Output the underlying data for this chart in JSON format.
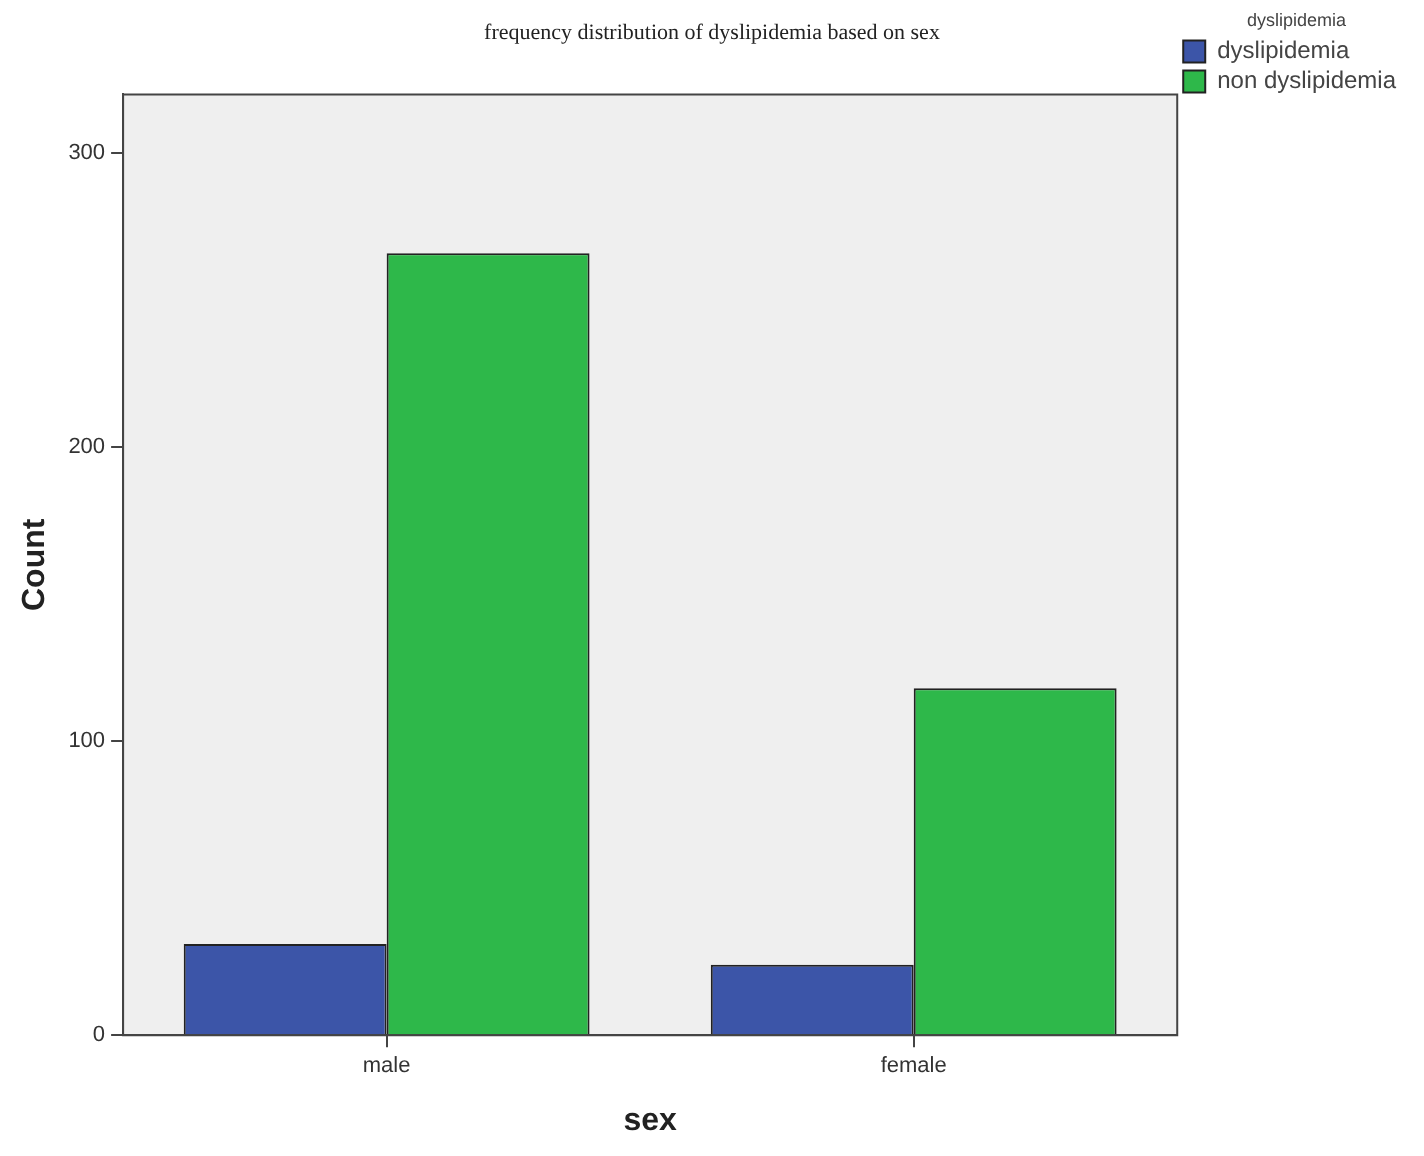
{
  "chart_data": {
    "type": "bar",
    "title": "frequency distribution of dyslipidemia based on sex",
    "xlabel": "sex",
    "ylabel": "Count",
    "legend_title": "dyslipidemia",
    "categories": [
      "male",
      "female"
    ],
    "series": [
      {
        "name": "dyslipidemia",
        "color": "#3c55a8",
        "values": [
          31,
          24
        ]
      },
      {
        "name": "non dyslipidemia",
        "color": "#2eb84a",
        "values": [
          266,
          118
        ]
      }
    ],
    "ylim": [
      0,
      320
    ],
    "yticks": [
      0,
      100,
      200,
      300
    ],
    "grid": false,
    "legend": "top right"
  }
}
